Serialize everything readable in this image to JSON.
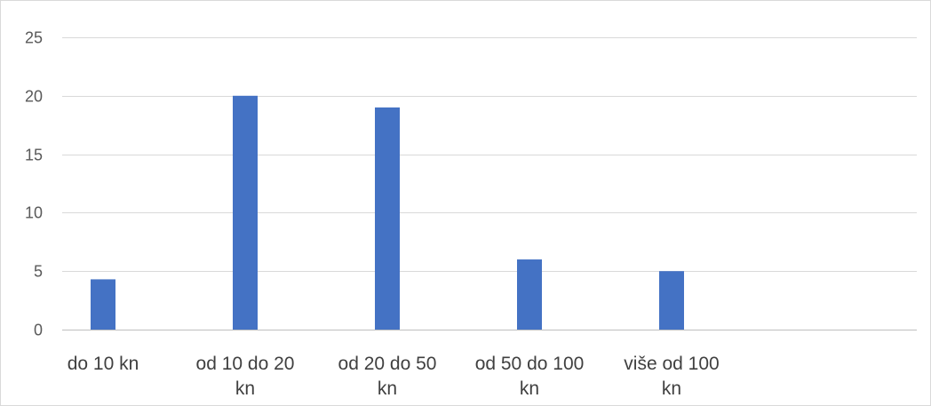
{
  "chart_data": {
    "type": "bar",
    "title": "",
    "xlabel": "",
    "ylabel": "",
    "ylim": [
      0,
      25
    ],
    "yticks": [
      0,
      5,
      10,
      15,
      20,
      25
    ],
    "grid": true,
    "legend": "none",
    "categories": [
      [
        "do 10 kn"
      ],
      [
        "od 10 do 20",
        "kn"
      ],
      [
        "od 20 do 50",
        "kn"
      ],
      [
        "od 50 do 100",
        "kn"
      ],
      [
        "više od 100",
        "kn"
      ]
    ],
    "series": [
      {
        "values": [
          4.3,
          20,
          19,
          6,
          5
        ],
        "color": "#4472c4"
      }
    ],
    "gridline_color": "#d9d9d9",
    "axis_color": "#bfbfbf",
    "tick_label_color": "#595959"
  }
}
